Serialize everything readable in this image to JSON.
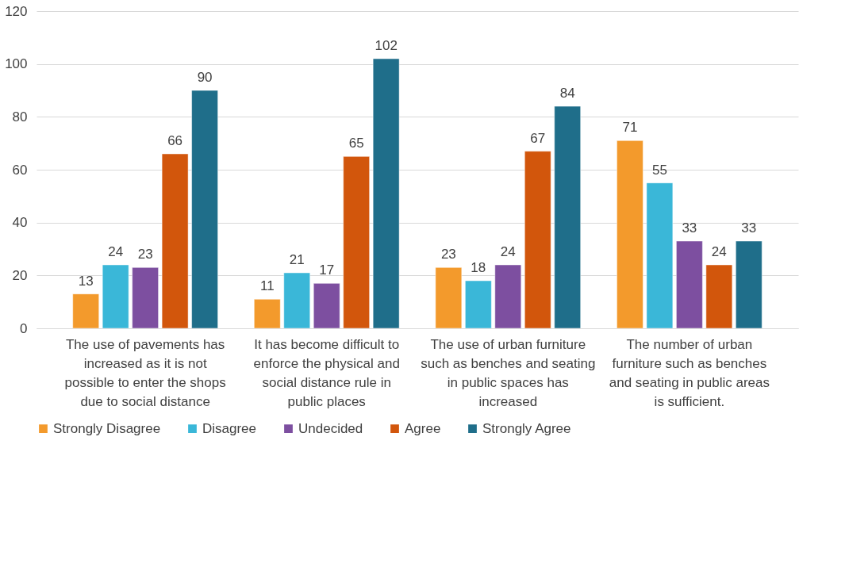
{
  "chart_data": {
    "type": "bar",
    "categories": [
      "The use of pavements has increased as it is not possible to enter the shops due to social distance",
      "It has become difficult to enforce the physical and social distance rule in public places",
      "The use of urban furniture such as benches and seating in public spaces has increased",
      "The number of urban furniture such as benches and seating in public areas is sufficient."
    ],
    "series": [
      {
        "name": "Strongly Disagree",
        "color": "#f39a2c",
        "values": [
          13,
          11,
          23,
          71
        ]
      },
      {
        "name": "Disagree",
        "color": "#3ab7d8",
        "values": [
          24,
          21,
          18,
          55
        ]
      },
      {
        "name": "Undecided",
        "color": "#7d4fa0",
        "values": [
          23,
          17,
          24,
          33
        ]
      },
      {
        "name": "Agree",
        "color": "#d2560c",
        "values": [
          66,
          65,
          67,
          24
        ]
      },
      {
        "name": "Strongly Agree",
        "color": "#1f6e8a",
        "values": [
          90,
          102,
          84,
          33
        ]
      }
    ],
    "ylim": [
      0,
      120
    ],
    "yticks": [
      0,
      20,
      40,
      60,
      80,
      100,
      120
    ],
    "grid": "y",
    "legend": "bottom",
    "data_labels": true
  }
}
